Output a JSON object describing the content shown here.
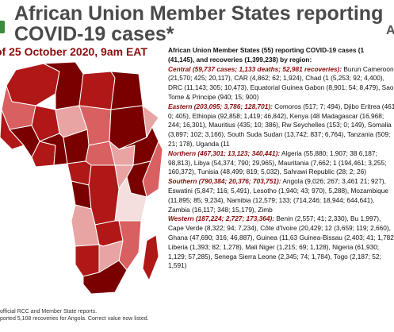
{
  "header": {
    "title_line1": "African Union Member States reporting",
    "title_line2": "COVID-19 cases*",
    "date": "of 25 October 2020, 9am EAT",
    "logo_letter": "A"
  },
  "intro": "African Union Member States (55) reporting COVID-19 cases (1",
  "intro2": "(41,145), and recoveries (1,399,238) by region:",
  "regions": [
    {
      "head": "Central (59,737 cases; 1,133 deaths; 52,981 recoveries):",
      "body": " Burun Cameroon (21,570; 425; 20,117), CAR (4,862; 62; 1,924), Chad (1 (5,253; 92; 4,400), DRC (11,143; 305; 10,473), Equatorial Guinea Gabon (8,901; 54; 8,479), Sao Tome & Principe (940; 15; 900)"
    },
    {
      "head": "Eastern (203,095; 3,786; 128,701):",
      "body": " Comoros (517; 7; 494), Djibo Eritrea (461; 0; 405), Ethiopia (92,858; 1,419; 46,842), Kenya (48 Madagascar (16,968; 244; 16,301), Mauritius (435; 10; 386), Rw Seychelles (153; 0; 149), Somalia (3,897; 102; 3,166), South Suda Sudan (13,742; 837; 6,764), Tanzania (509; 21; 178), Uganda (11"
    },
    {
      "head": "Northern (467,301; 13,123; 340,441):",
      "body": " Algeria (55,880; 1,907; 38 6,187; 98,813), Libya (54,374; 790; 29,965), Mauritania (7,662; 1 (194,461; 3,255; 160,372), Tunisia (48,499; 819; 5,032), Sahrawi Republic (28; 2; 26)"
    },
    {
      "head": "Southern (790,384; 20,376; 703,751):",
      "body": " Angola (9,026; 267; 3,461 21; 927), Eswatini (5,847; 116; 5,491), Lesotho (1,940; 43; 970), 5,288), Mozambique (11,895; 85; 9,234), Namibia (12,579; 133; (714,246; 18,944; 644,641), Zambia (16,117; 348; 15,179), Zimb"
    },
    {
      "head": "Western (187,224; 2,727; 173,364):",
      "body": " Benin (2,557; 41; 2,330), Bu 1,997), Cape Verde (8,322; 94; 7,234), Côte d'Ivoire (20,429; 12 (3,659; 119; 2,660), Ghana (47,690; 316; 46,887), Guinea (11,63 Guinea-Bissau (2,403; 41; 1,782), Liberia (1,393; 82; 1,278), Mali Niger (1,215; 69; 1,128), Nigeria (61,930; 1,129; 57,285), Senega Sierra Leone (2,345; 74; 1,784), Togo (2,187; 52; 1,591)"
    }
  ],
  "footnote_line1": "official RCC and Member State reports.",
  "footnote_line2": "ported 5,108 recoveries for Angola. Correct value now listed.",
  "colors": {
    "title": "#4a4a4a",
    "accent": "#8a0c0c",
    "dark_red": "#7a0000",
    "mid_red": "#b01818",
    "light_red": "#e8a3a3",
    "pale": "#f5dede",
    "border": "#ffffff"
  }
}
